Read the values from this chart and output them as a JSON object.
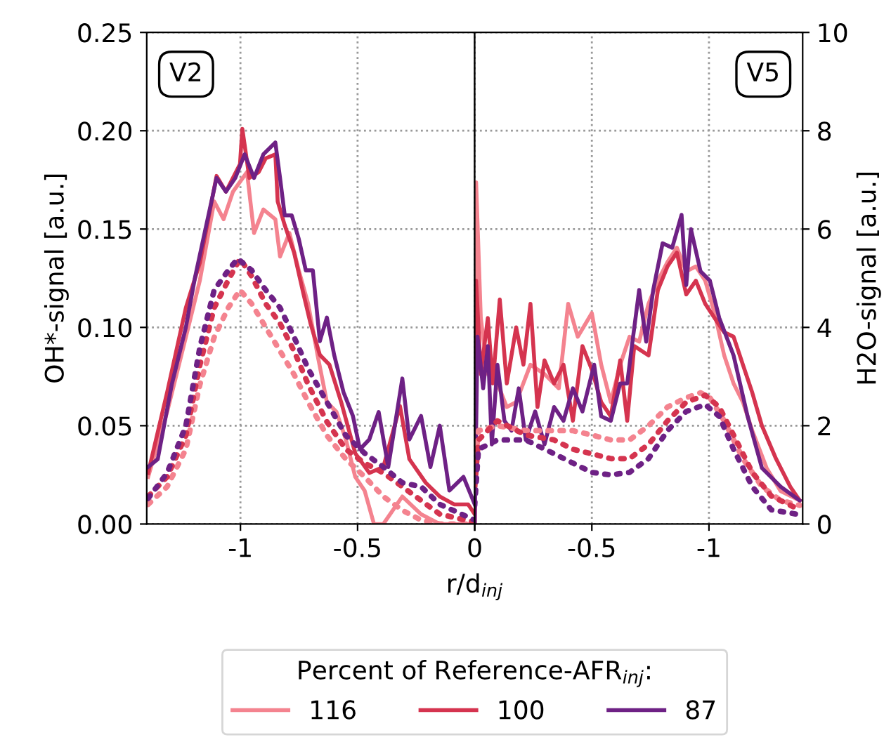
{
  "chart_data": [
    {
      "type": "line",
      "xlabel": "r/d$_{inj}$",
      "ylabel": "OH*-signal [a.u.]",
      "legend_title": "Percent of Reference-AFR$_{inj}$:",
      "legend": "bottom",
      "grid": true,
      "annotations": [
        "V2"
      ],
      "xlim": [
        -1.4,
        0
      ],
      "xticks": [
        -1,
        -0.5,
        {
          "value": 0,
          "label": null
        }
      ],
      "ylim": [
        0,
        0.25
      ],
      "yticks": [
        {
          "value": 0,
          "label": "0.00"
        },
        {
          "value": 0.05,
          "label": "0.05"
        },
        {
          "value": 0.1,
          "label": "0.10"
        },
        {
          "value": 0.15,
          "label": "0.15"
        },
        {
          "value": 0.2,
          "label": "0.20"
        },
        {
          "value": 0.25,
          "label": "0.25"
        }
      ],
      "series": [
        {
          "name": "116",
          "color": "#f4838f",
          "line_style": "solid",
          "x": [
            -1.394,
            -1.313,
            -1.233,
            -1.173,
            -1.112,
            -1.072,
            -1.032,
            -0.972,
            -0.942,
            -0.902,
            -0.851,
            -0.831,
            -0.791,
            -0.751,
            -0.711,
            -0.671,
            -0.631,
            -0.59,
            -0.55,
            -0.51,
            -0.47,
            -0.43,
            -0.39,
            -0.309,
            -0.229,
            -0.149,
            0
          ],
          "values": [
            0.024,
            0.057,
            0.095,
            0.124,
            0.164,
            0.155,
            0.169,
            0.179,
            0.148,
            0.16,
            0.155,
            0.136,
            0.148,
            0.129,
            0.112,
            0.086,
            0.062,
            0.057,
            0.043,
            0.024,
            0.017,
            0.0,
            0.0,
            0.014,
            0.005,
            0.0,
            0.0
          ]
        },
        {
          "name": "100",
          "color": "#d5344f",
          "line_style": "solid",
          "x": [
            -1.394,
            -1.313,
            -1.233,
            -1.173,
            -1.102,
            -1.062,
            -1.002,
            -0.992,
            -0.962,
            -0.922,
            -0.892,
            -0.851,
            -0.841,
            -0.811,
            -0.771,
            -0.731,
            -0.701,
            -0.661,
            -0.62,
            -0.57,
            -0.51,
            -0.45,
            -0.39,
            -0.319,
            -0.279,
            -0.209,
            -0.149,
            -0.088,
            -0.028,
            0
          ],
          "values": [
            0.026,
            0.067,
            0.11,
            0.133,
            0.177,
            0.169,
            0.183,
            0.201,
            0.176,
            0.179,
            0.186,
            0.188,
            0.164,
            0.152,
            0.138,
            0.117,
            0.102,
            0.086,
            0.081,
            0.062,
            0.036,
            0.026,
            0.029,
            0.06,
            0.033,
            0.021,
            0.014,
            0.01,
            0.01,
            0.005
          ]
        },
        {
          "name": "87",
          "color": "#6e2185",
          "line_style": "solid",
          "x": [
            -1.394,
            -1.353,
            -1.293,
            -1.233,
            -1.193,
            -1.153,
            -1.102,
            -1.062,
            -1.022,
            -0.982,
            -0.942,
            -0.902,
            -0.851,
            -0.831,
            -0.811,
            -0.781,
            -0.751,
            -0.721,
            -0.691,
            -0.661,
            -0.631,
            -0.6,
            -0.56,
            -0.52,
            -0.49,
            -0.45,
            -0.41,
            -0.369,
            -0.309,
            -0.279,
            -0.229,
            -0.189,
            -0.149,
            -0.108,
            -0.048,
            0
          ],
          "values": [
            0.029,
            0.033,
            0.071,
            0.1,
            0.126,
            0.148,
            0.176,
            0.169,
            0.176,
            0.188,
            0.176,
            0.188,
            0.194,
            0.176,
            0.157,
            0.157,
            0.145,
            0.129,
            0.129,
            0.093,
            0.105,
            0.086,
            0.067,
            0.055,
            0.038,
            0.043,
            0.057,
            0.029,
            0.074,
            0.043,
            0.055,
            0.029,
            0.05,
            0.017,
            0.024,
            0.01
          ]
        },
        {
          "color": "#f4838f",
          "line_style": "dotted",
          "x": [
            -1.394,
            -1.313,
            -1.233,
            -1.173,
            -1.112,
            -1.052,
            -1.002,
            -0.952,
            -0.892,
            -0.831,
            -0.771,
            -0.711,
            -0.631,
            -0.55,
            -0.47,
            -0.39,
            -0.309,
            -0.229,
            -0.149,
            0
          ],
          "values": [
            0.01,
            0.019,
            0.038,
            0.071,
            0.095,
            0.11,
            0.119,
            0.112,
            0.1,
            0.088,
            0.076,
            0.062,
            0.045,
            0.033,
            0.024,
            0.014,
            0.007,
            0.002,
            0.0,
            0.0
          ]
        },
        {
          "color": "#d5344f",
          "line_style": "dotted",
          "x": [
            -1.394,
            -1.313,
            -1.233,
            -1.173,
            -1.112,
            -1.052,
            -1.002,
            -0.952,
            -0.892,
            -0.831,
            -0.771,
            -0.711,
            -0.631,
            -0.55,
            -0.47,
            -0.39,
            -0.309,
            -0.229,
            -0.149,
            0
          ],
          "values": [
            0.014,
            0.024,
            0.045,
            0.081,
            0.11,
            0.124,
            0.135,
            0.126,
            0.112,
            0.102,
            0.088,
            0.071,
            0.052,
            0.038,
            0.031,
            0.026,
            0.019,
            0.012,
            0.005,
            0.001
          ]
        },
        {
          "color": "#6e2185",
          "line_style": "dotted",
          "x": [
            -1.394,
            -1.313,
            -1.233,
            -1.173,
            -1.112,
            -1.052,
            -1.012,
            -0.952,
            -0.892,
            -0.831,
            -0.771,
            -0.711,
            -0.631,
            -0.55,
            -0.47,
            -0.39,
            -0.309,
            -0.229,
            -0.149,
            0
          ],
          "values": [
            0.013,
            0.026,
            0.05,
            0.09,
            0.119,
            0.129,
            0.135,
            0.129,
            0.119,
            0.11,
            0.095,
            0.079,
            0.062,
            0.045,
            0.036,
            0.029,
            0.021,
            0.019,
            0.01,
            0.002
          ]
        }
      ]
    },
    {
      "type": "line",
      "y2label": "H2O-signal [a.u.]",
      "grid": true,
      "annotations": [
        "V5"
      ],
      "xlim": [
        0,
        -1.4
      ],
      "xticks": [
        0,
        -0.5,
        -1
      ],
      "y2lim": [
        0,
        10
      ],
      "y2ticks": [
        0,
        2,
        4,
        6,
        8,
        10
      ],
      "series": [
        {
          "color": "#f4838f",
          "line_style": "solid",
          "axis": "y2",
          "x": [
            0,
            -0.006,
            -0.026,
            -0.056,
            -0.097,
            -0.137,
            -0.177,
            -0.238,
            -0.298,
            -0.359,
            -0.399,
            -0.44,
            -0.5,
            -0.54,
            -0.581,
            -0.621,
            -0.661,
            -0.702,
            -0.742,
            -0.782,
            -0.823,
            -0.863,
            -0.903,
            -0.944,
            -0.984,
            -1.024,
            -1.065,
            -1.105,
            -1.145,
            -1.185,
            -1.246,
            -1.306,
            -1.387
          ],
          "values": [
            0,
            6.95,
            4.19,
            3.05,
            2.86,
            2.38,
            2.48,
            3.24,
            3.05,
            2.76,
            4.48,
            3.81,
            4.29,
            3.24,
            2.48,
            3.24,
            3.81,
            3.71,
            4.48,
            4.95,
            5.33,
            5.62,
            5.14,
            5.24,
            4.95,
            4.29,
            3.43,
            2.86,
            2.48,
            1.9,
            1.14,
            0.67,
            0.48
          ]
        },
        {
          "color": "#d5344f",
          "line_style": "solid",
          "axis": "y2",
          "x": [
            0,
            -0.006,
            -0.026,
            -0.056,
            -0.077,
            -0.107,
            -0.137,
            -0.177,
            -0.208,
            -0.238,
            -0.268,
            -0.298,
            -0.339,
            -0.379,
            -0.419,
            -0.46,
            -0.5,
            -0.54,
            -0.581,
            -0.621,
            -0.651,
            -0.681,
            -0.742,
            -0.782,
            -0.823,
            -0.863,
            -0.903,
            -0.944,
            -0.984,
            -1.024,
            -1.065,
            -1.105,
            -1.145,
            -1.185,
            -1.226,
            -1.286,
            -1.347,
            -1.387
          ],
          "values": [
            0,
            4.95,
            3.05,
            4.19,
            2.86,
            4.57,
            2.86,
            4.0,
            3.24,
            4.48,
            2.38,
            3.33,
            2.86,
            3.24,
            2.1,
            3.62,
            3.14,
            2.48,
            2.19,
            3.33,
            2.1,
            3.62,
            3.43,
            4.76,
            5.24,
            5.52,
            4.67,
            4.95,
            4.48,
            4.19,
            3.9,
            3.81,
            3.24,
            2.67,
            2.0,
            1.33,
            0.76,
            0.48
          ]
        },
        {
          "color": "#6e2185",
          "line_style": "solid",
          "axis": "y2",
          "x": [
            0,
            -0.012,
            -0.036,
            -0.056,
            -0.073,
            -0.097,
            -0.127,
            -0.157,
            -0.188,
            -0.218,
            -0.258,
            -0.298,
            -0.339,
            -0.379,
            -0.419,
            -0.46,
            -0.51,
            -0.54,
            -0.581,
            -0.621,
            -0.651,
            -0.671,
            -0.702,
            -0.732,
            -0.762,
            -0.802,
            -0.843,
            -0.883,
            -0.903,
            -0.923,
            -0.964,
            -1.004,
            -1.044,
            -1.105,
            -1.165,
            -1.226,
            -1.306,
            -1.387
          ],
          "values": [
            0,
            3.81,
            2.76,
            3.62,
            1.62,
            3.24,
            2.1,
            1.9,
            2.76,
            1.71,
            2.29,
            1.62,
            2.38,
            2.1,
            2.76,
            2.29,
            3.24,
            2.19,
            2.1,
            2.86,
            2.86,
            3.62,
            4.76,
            3.71,
            4.76,
            5.71,
            5.62,
            6.29,
            4.86,
            6.0,
            5.14,
            4.95,
            4.19,
            3.43,
            2.19,
            1.14,
            0.76,
            0.48
          ]
        },
        {
          "color": "#f4838f",
          "line_style": "dotted",
          "axis": "y2",
          "x": [
            0,
            -0.016,
            -0.097,
            -0.218,
            -0.339,
            -0.419,
            -0.5,
            -0.581,
            -0.661,
            -0.742,
            -0.823,
            -0.903,
            -0.964,
            -1.004,
            -1.065,
            -1.145,
            -1.226,
            -1.306,
            -1.387
          ],
          "values": [
            1.14,
            1.9,
            2.0,
            1.9,
            1.9,
            1.9,
            1.81,
            1.71,
            1.71,
            2.0,
            2.38,
            2.57,
            2.67,
            2.57,
            2.1,
            1.33,
            0.76,
            0.48,
            0.38
          ]
        },
        {
          "color": "#d5344f",
          "line_style": "dotted",
          "axis": "y2",
          "x": [
            0,
            -0.016,
            -0.097,
            -0.218,
            -0.339,
            -0.419,
            -0.5,
            -0.581,
            -0.661,
            -0.742,
            -0.823,
            -0.903,
            -0.984,
            -1.044,
            -1.105,
            -1.185,
            -1.266,
            -1.387
          ],
          "values": [
            0.76,
            1.71,
            2.1,
            1.81,
            1.71,
            1.52,
            1.43,
            1.33,
            1.33,
            1.62,
            2.1,
            2.48,
            2.62,
            2.38,
            1.81,
            1.05,
            0.57,
            0.29
          ]
        },
        {
          "color": "#6e2185",
          "line_style": "dotted",
          "axis": "y2",
          "x": [
            0,
            -0.016,
            -0.097,
            -0.218,
            -0.339,
            -0.419,
            -0.5,
            -0.581,
            -0.661,
            -0.742,
            -0.823,
            -0.903,
            -0.984,
            -1.044,
            -1.105,
            -1.185,
            -1.266,
            -1.387
          ],
          "values": [
            0.38,
            1.52,
            1.71,
            1.71,
            1.43,
            1.24,
            1.05,
            1.0,
            1.05,
            1.33,
            1.9,
            2.29,
            2.43,
            2.19,
            1.52,
            0.76,
            0.29,
            0.19
          ]
        }
      ]
    }
  ]
}
